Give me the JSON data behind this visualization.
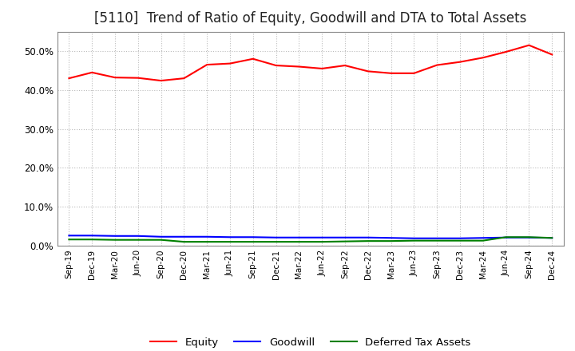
{
  "title": "[5110]  Trend of Ratio of Equity, Goodwill and DTA to Total Assets",
  "x_labels": [
    "Sep-19",
    "Dec-19",
    "Mar-20",
    "Jun-20",
    "Sep-20",
    "Dec-20",
    "Mar-21",
    "Jun-21",
    "Sep-21",
    "Dec-21",
    "Mar-22",
    "Jun-22",
    "Sep-22",
    "Dec-22",
    "Mar-23",
    "Jun-23",
    "Sep-23",
    "Dec-23",
    "Mar-24",
    "Jun-24",
    "Sep-24",
    "Dec-24"
  ],
  "equity": [
    0.43,
    0.445,
    0.432,
    0.431,
    0.424,
    0.43,
    0.465,
    0.468,
    0.48,
    0.463,
    0.46,
    0.455,
    0.463,
    0.448,
    0.443,
    0.443,
    0.464,
    0.472,
    0.483,
    0.498,
    0.515,
    0.491
  ],
  "goodwill": [
    0.026,
    0.026,
    0.025,
    0.025,
    0.023,
    0.023,
    0.023,
    0.022,
    0.022,
    0.021,
    0.021,
    0.021,
    0.021,
    0.021,
    0.02,
    0.019,
    0.019,
    0.019,
    0.02,
    0.021,
    0.021,
    0.02
  ],
  "dta": [
    0.016,
    0.016,
    0.015,
    0.015,
    0.015,
    0.01,
    0.01,
    0.01,
    0.01,
    0.01,
    0.01,
    0.01,
    0.011,
    0.012,
    0.012,
    0.013,
    0.013,
    0.013,
    0.013,
    0.022,
    0.022,
    0.02
  ],
  "equity_color": "#FF0000",
  "goodwill_color": "#0000FF",
  "dta_color": "#008000",
  "ylim": [
    0.0,
    0.55
  ],
  "yticks": [
    0.0,
    0.1,
    0.2,
    0.3,
    0.4,
    0.5
  ],
  "bg_color": "#FFFFFF",
  "plot_bg_color": "#FFFFFF",
  "grid_color": "#BBBBBB",
  "title_fontsize": 12,
  "legend_labels": [
    "Equity",
    "Goodwill",
    "Deferred Tax Assets"
  ]
}
